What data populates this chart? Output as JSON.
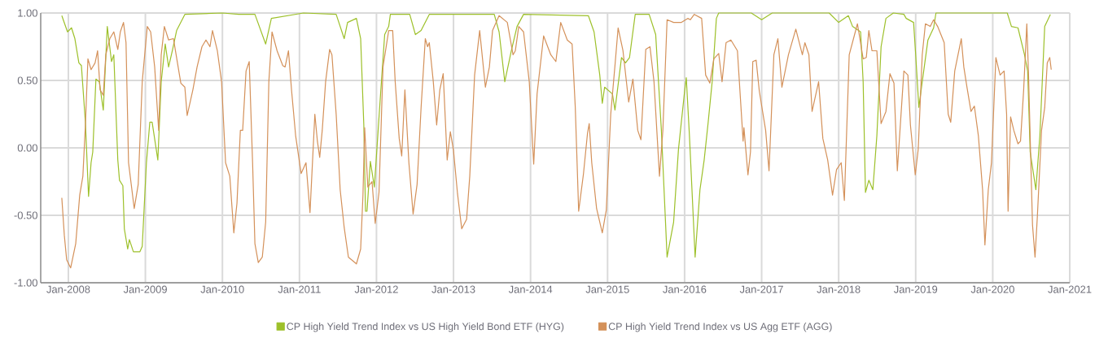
{
  "chart_data": {
    "type": "line",
    "xlim": [
      "2007-08-23",
      "2021-01-01"
    ],
    "xticks": [
      {
        "value": "2008-01-01",
        "label": "Jan-2008"
      },
      {
        "value": "2009-01-01",
        "label": "Jan-2009"
      },
      {
        "value": "2010-01-01",
        "label": "Jan-2010"
      },
      {
        "value": "2011-01-01",
        "label": "Jan-2011"
      },
      {
        "value": "2012-01-01",
        "label": "Jan-2012"
      },
      {
        "value": "2013-01-01",
        "label": "Jan-2013"
      },
      {
        "value": "2014-01-01",
        "label": "Jan-2014"
      },
      {
        "value": "2015-01-01",
        "label": "Jan-2015"
      },
      {
        "value": "2016-01-01",
        "label": "Jan-2016"
      },
      {
        "value": "2017-01-01",
        "label": "Jan-2017"
      },
      {
        "value": "2018-01-01",
        "label": "Jan-2018"
      },
      {
        "value": "2019-01-01",
        "label": "Jan-2019"
      },
      {
        "value": "2020-01-01",
        "label": "Jan-2020"
      },
      {
        "value": "2021-01-01",
        "label": "Jan-2021"
      }
    ],
    "ylim": [
      -1,
      1
    ],
    "yticks": [
      {
        "value": -1,
        "label": "-1.00"
      },
      {
        "value": -0.5,
        "label": "-0.50"
      },
      {
        "value": 0,
        "label": "0.00"
      },
      {
        "value": 0.5,
        "label": "0.50"
      },
      {
        "value": 1,
        "label": "1.00"
      }
    ],
    "grid": true,
    "legend": "bottom",
    "series": [
      {
        "name": "CP High Yield Trend Index vs US High Yield Bond ETF (HYG)",
        "color": "#9dc02a",
        "x": [
          "2007-12-01",
          "2007-12-28",
          "2008-01-16",
          "2008-02-01",
          "2008-02-20",
          "2008-03-03",
          "2008-03-22",
          "2008-04-06",
          "2008-04-18",
          "2008-04-26",
          "2008-05-11",
          "2008-05-27",
          "2008-06-15",
          "2008-07-04",
          "2008-07-24",
          "2008-08-04",
          "2008-08-23",
          "2008-08-31",
          "2008-09-16",
          "2008-09-23",
          "2008-10-09",
          "2008-10-17",
          "2008-11-05",
          "2008-12-06",
          "2008-12-17",
          "2009-01-06",
          "2009-01-22",
          "2009-02-02",
          "2009-03-01",
          "2009-03-17",
          "2009-04-05",
          "2009-04-21",
          "2009-05-10",
          "2009-05-29",
          "2009-07-07",
          "2010-01-01",
          "2010-03-19",
          "2010-06-04",
          "2010-07-25",
          "2010-08-21",
          "2011-01-20",
          "2011-06-24",
          "2011-08-01",
          "2011-08-17",
          "2011-09-28",
          "2011-10-18",
          "2011-11-02",
          "2011-11-10",
          "2011-11-17",
          "2011-12-03",
          "2011-12-22",
          "2012-01-20",
          "2012-02-09",
          "2012-02-28",
          "2012-03-07",
          "2012-06-07",
          "2012-07-04",
          "2012-07-31",
          "2012-09-08",
          "2013-07-13",
          "2013-08-05",
          "2013-09-01",
          "2013-10-02",
          "2013-10-29",
          "2013-11-29",
          "2014-10-02",
          "2014-10-29",
          "2014-11-25",
          "2014-12-07",
          "2014-12-18",
          "2015-01-24",
          "2015-02-05",
          "2015-03-08",
          "2015-03-27",
          "2015-04-15",
          "2015-05-12",
          "2015-07-17",
          "2015-08-17",
          "2015-09-13",
          "2015-10-10",
          "2015-11-10",
          "2015-12-03",
          "2015-12-30",
          "2016-01-09",
          "2016-01-24",
          "2016-02-20",
          "2016-03-14",
          "2016-04-03",
          "2016-04-22",
          "2016-05-11",
          "2016-05-31",
          "2016-06-11",
          "2016-11-13",
          "2017-01-01",
          "2017-02-20",
          "2017-11-17",
          "2018-01-01",
          "2018-02-16",
          "2018-03-08",
          "2018-04-15",
          "2018-04-27",
          "2018-05-08",
          "2018-05-24",
          "2018-06-12",
          "2018-07-01",
          "2018-07-21",
          "2018-08-13",
          "2018-09-17",
          "2018-11-06",
          "2018-11-17",
          "2018-12-22",
          "2019-01-01",
          "2019-01-16",
          "2019-02-01",
          "2019-02-28",
          "2019-03-27",
          "2019-04-07",
          "2020-03-10",
          "2020-03-30",
          "2020-04-30",
          "2020-05-31",
          "2020-06-15",
          "2020-06-27",
          "2020-07-24",
          "2020-08-12",
          "2020-09-04",
          "2020-10-01"
        ],
        "values": [
          0.98,
          0.86,
          0.89,
          0.81,
          0.63,
          0.61,
          0.19,
          -0.36,
          -0.11,
          -0.03,
          0.51,
          0.49,
          0.28,
          0.9,
          0.64,
          0.69,
          -0.09,
          -0.24,
          -0.28,
          -0.6,
          -0.75,
          -0.68,
          -0.77,
          -0.77,
          -0.73,
          -0.11,
          0.19,
          0.19,
          -0.09,
          0.49,
          0.77,
          0.6,
          0.73,
          0.87,
          0.99,
          1.0,
          0.99,
          0.99,
          0.77,
          0.96,
          1.0,
          0.99,
          0.81,
          0.93,
          0.96,
          0.81,
          0.17,
          -0.47,
          -0.47,
          -0.1,
          -0.29,
          0.39,
          0.84,
          0.9,
          0.99,
          0.99,
          0.84,
          0.87,
          0.99,
          0.99,
          0.86,
          0.49,
          0.72,
          0.9,
          0.99,
          0.98,
          0.86,
          0.54,
          0.33,
          0.45,
          0.4,
          0.28,
          0.67,
          0.63,
          0.67,
          0.99,
          0.99,
          0.84,
          0.13,
          -0.81,
          -0.55,
          -0.01,
          0.39,
          0.52,
          0.09,
          -0.81,
          -0.31,
          -0.09,
          0.19,
          0.49,
          0.96,
          1.0,
          1.0,
          0.95,
          1.0,
          1.0,
          0.93,
          0.98,
          0.9,
          0.86,
          0.49,
          -0.33,
          -0.24,
          -0.31,
          0.09,
          0.75,
          0.96,
          1.0,
          0.99,
          0.96,
          0.93,
          0.69,
          0.3,
          0.49,
          0.8,
          0.89,
          1.0,
          1.0,
          0.9,
          0.89,
          0.69,
          0.57,
          -0.03,
          -0.31,
          0.09,
          0.9,
          0.99
        ]
      },
      {
        "name": "CP High Yield Trend Index vs US Agg ETF (AGG)",
        "color": "#d4915a",
        "x": [
          "2007-12-01",
          "2007-12-13",
          "2007-12-24",
          "2008-01-12",
          "2008-02-05",
          "2008-02-24",
          "2008-03-10",
          "2008-03-22",
          "2008-04-03",
          "2008-04-18",
          "2008-05-07",
          "2008-05-19",
          "2008-05-31",
          "2008-06-15",
          "2008-06-27",
          "2008-07-16",
          "2008-08-04",
          "2008-08-23",
          "2008-09-04",
          "2008-09-19",
          "2008-10-01",
          "2008-10-13",
          "2008-11-09",
          "2008-11-28",
          "2008-12-17",
          "2009-01-10",
          "2009-01-26",
          "2009-02-14",
          "2009-03-05",
          "2009-03-17",
          "2009-04-01",
          "2009-04-21",
          "2009-05-14",
          "2009-06-18",
          "2009-07-07",
          "2009-07-18",
          "2009-08-14",
          "2009-09-03",
          "2009-09-26",
          "2009-10-15",
          "2009-11-03",
          "2009-11-15",
          "2009-12-08",
          "2009-12-28",
          "2010-01-16",
          "2010-02-05",
          "2010-02-24",
          "2010-03-11",
          "2010-03-27",
          "2010-04-07",
          "2010-04-23",
          "2010-05-08",
          "2010-05-24",
          "2010-06-04",
          "2010-06-20",
          "2010-07-09",
          "2010-07-25",
          "2010-08-09",
          "2010-08-24",
          "2010-09-17",
          "2010-10-14",
          "2010-10-25",
          "2010-11-10",
          "2010-11-25",
          "2010-12-14",
          "2011-01-09",
          "2011-02-01",
          "2011-02-20",
          "2011-03-15",
          "2011-03-27",
          "2011-04-07",
          "2011-04-19",
          "2011-05-05",
          "2011-05-24",
          "2011-06-04",
          "2011-06-24",
          "2011-07-13",
          "2011-08-01",
          "2011-08-21",
          "2011-09-28",
          "2011-10-18",
          "2011-10-29",
          "2011-11-06",
          "2011-11-21",
          "2011-12-11",
          "2011-12-26",
          "2012-01-13",
          "2012-02-01",
          "2012-02-28",
          "2012-03-18",
          "2012-03-30",
          "2012-04-18",
          "2012-04-30",
          "2012-05-15",
          "2012-06-03",
          "2012-06-23",
          "2012-07-12",
          "2012-07-31",
          "2012-08-20",
          "2012-08-31",
          "2012-09-08",
          "2012-09-27",
          "2012-10-13",
          "2012-10-28",
          "2012-11-13",
          "2012-12-02",
          "2012-12-17",
          "2013-01-01",
          "2013-01-20",
          "2013-02-09",
          "2013-03-04",
          "2013-03-19",
          "2013-04-11",
          "2013-05-05",
          "2013-06-01",
          "2013-06-20",
          "2013-07-05",
          "2013-08-05",
          "2013-09-13",
          "2013-10-10",
          "2013-10-21",
          "2013-11-06",
          "2013-11-29",
          "2013-12-26",
          "2014-01-16",
          "2014-02-01",
          "2014-03-04",
          "2014-04-07",
          "2014-05-01",
          "2014-05-24",
          "2014-06-24",
          "2014-07-17",
          "2014-08-01",
          "2014-08-17",
          "2014-09-09",
          "2014-09-28",
          "2014-10-06",
          "2014-10-18",
          "2014-11-10",
          "2014-12-07",
          "2014-12-26",
          "2015-01-16",
          "2015-02-05",
          "2015-02-20",
          "2015-03-15",
          "2015-04-11",
          "2015-05-01",
          "2015-05-24",
          "2015-06-08",
          "2015-07-01",
          "2015-07-21",
          "2015-08-09",
          "2015-09-04",
          "2015-09-20",
          "2015-10-10",
          "2015-11-10",
          "2015-12-17",
          "2016-01-16",
          "2016-01-28",
          "2016-02-16",
          "2016-03-22",
          "2016-04-10",
          "2016-04-30",
          "2016-05-19",
          "2016-06-11",
          "2016-06-27",
          "2016-07-16",
          "2016-08-08",
          "2016-09-08",
          "2016-10-05",
          "2016-10-09",
          "2016-10-28",
          "2016-11-09",
          "2016-11-20",
          "2016-12-06",
          "2016-12-21",
          "2017-01-20",
          "2017-02-05",
          "2017-02-28",
          "2017-03-19",
          "2017-04-07",
          "2017-05-08",
          "2017-06-12",
          "2017-07-13",
          "2017-07-25",
          "2017-08-13",
          "2017-08-28",
          "2017-09-28",
          "2017-10-18",
          "2017-11-10",
          "2017-12-03",
          "2017-12-22",
          "2018-01-13",
          "2018-01-28",
          "2018-02-20",
          "2018-03-31",
          "2018-04-27",
          "2018-05-12",
          "2018-05-24",
          "2018-06-08",
          "2018-07-01",
          "2018-07-21",
          "2018-08-13",
          "2018-09-01",
          "2018-09-20",
          "2018-10-06",
          "2018-11-06",
          "2018-11-25",
          "2018-12-07",
          "2018-12-30",
          "2019-01-13",
          "2019-02-01",
          "2019-02-16",
          "2019-03-11",
          "2019-03-27",
          "2019-04-15",
          "2019-05-16",
          "2019-06-04",
          "2019-06-16",
          "2019-07-05",
          "2019-08-05",
          "2019-08-17",
          "2019-09-01",
          "2019-09-20",
          "2019-10-06",
          "2019-10-25",
          "2019-11-14",
          "2019-11-25",
          "2019-12-11",
          "2019-12-26",
          "2020-01-16",
          "2020-02-05",
          "2020-02-24",
          "2020-03-07",
          "2020-03-14",
          "2020-03-26",
          "2020-04-10",
          "2020-04-30",
          "2020-05-12",
          "2020-05-27",
          "2020-06-11",
          "2020-06-19",
          "2020-07-08",
          "2020-07-20",
          "2020-07-31",
          "2020-08-20",
          "2020-09-04",
          "2020-09-16",
          "2020-09-28",
          "2020-10-05"
        ],
        "values": [
          -0.37,
          -0.65,
          -0.83,
          -0.89,
          -0.71,
          -0.35,
          -0.21,
          0.17,
          0.66,
          0.58,
          0.63,
          0.72,
          0.43,
          0.39,
          0.69,
          0.81,
          0.86,
          0.73,
          0.86,
          0.93,
          0.78,
          -0.11,
          -0.45,
          -0.27,
          0.49,
          0.9,
          0.86,
          0.6,
          0.13,
          0.69,
          0.9,
          0.8,
          0.81,
          0.48,
          0.45,
          0.24,
          0.43,
          0.6,
          0.75,
          0.8,
          0.75,
          0.87,
          0.72,
          0.49,
          -0.11,
          -0.21,
          -0.63,
          -0.41,
          0.13,
          0.13,
          0.57,
          0.64,
          -0.11,
          -0.71,
          -0.85,
          -0.81,
          -0.55,
          0.49,
          0.86,
          0.72,
          0.61,
          0.6,
          0.72,
          0.42,
          0.09,
          -0.19,
          -0.11,
          -0.48,
          0.25,
          0.05,
          -0.07,
          0.13,
          0.49,
          0.73,
          0.69,
          0.25,
          -0.31,
          -0.59,
          -0.81,
          -0.86,
          -0.75,
          -0.35,
          0.15,
          -0.29,
          -0.25,
          -0.56,
          -0.33,
          0.6,
          0.87,
          0.87,
          0.49,
          0.07,
          -0.06,
          0.43,
          -0.11,
          -0.49,
          -0.27,
          0.3,
          0.81,
          0.75,
          0.78,
          0.49,
          0.17,
          0.43,
          0.55,
          -0.09,
          0.12,
          -0.02,
          -0.34,
          -0.6,
          -0.53,
          -0.21,
          0.54,
          0.87,
          0.45,
          0.6,
          0.87,
          0.98,
          0.93,
          0.69,
          0.72,
          0.9,
          0.86,
          0.49,
          -0.12,
          0.4,
          0.83,
          0.69,
          0.64,
          0.93,
          0.8,
          0.77,
          0.3,
          -0.47,
          -0.19,
          0.11,
          0.18,
          -0.11,
          -0.45,
          -0.63,
          -0.46,
          0.25,
          0.61,
          0.89,
          0.72,
          0.34,
          0.51,
          0.13,
          0.06,
          0.73,
          0.75,
          0.49,
          -0.21,
          0.13,
          0.95,
          0.93,
          0.93,
          0.96,
          0.95,
          0.99,
          0.96,
          0.54,
          0.48,
          0.66,
          0.7,
          0.49,
          0.78,
          0.8,
          0.72,
          0.05,
          0.15,
          -0.2,
          -0.03,
          0.64,
          0.65,
          0.42,
          0.13,
          -0.17,
          0.69,
          0.81,
          0.45,
          0.69,
          0.88,
          0.69,
          0.78,
          0.69,
          0.27,
          0.49,
          0.07,
          -0.09,
          -0.35,
          -0.16,
          -0.11,
          -0.39,
          0.69,
          0.92,
          0.66,
          0.67,
          0.87,
          0.72,
          0.72,
          0.18,
          0.27,
          0.55,
          0.48,
          -0.17,
          0.57,
          0.54,
          0.17,
          -0.2,
          -0.01,
          0.69,
          0.92,
          0.9,
          0.95,
          0.9,
          0.78,
          0.25,
          0.19,
          0.57,
          0.81,
          0.6,
          0.45,
          0.27,
          0.31,
          0.09,
          -0.31,
          -0.72,
          -0.31,
          -0.11,
          0.67,
          0.54,
          0.57,
          0.25,
          -0.47,
          0.23,
          0.13,
          0.03,
          0.05,
          0.43,
          0.92,
          0.55,
          -0.57,
          -0.81,
          -0.51,
          0.13,
          0.3,
          0.63,
          0.67,
          0.58
        ]
      }
    ]
  }
}
